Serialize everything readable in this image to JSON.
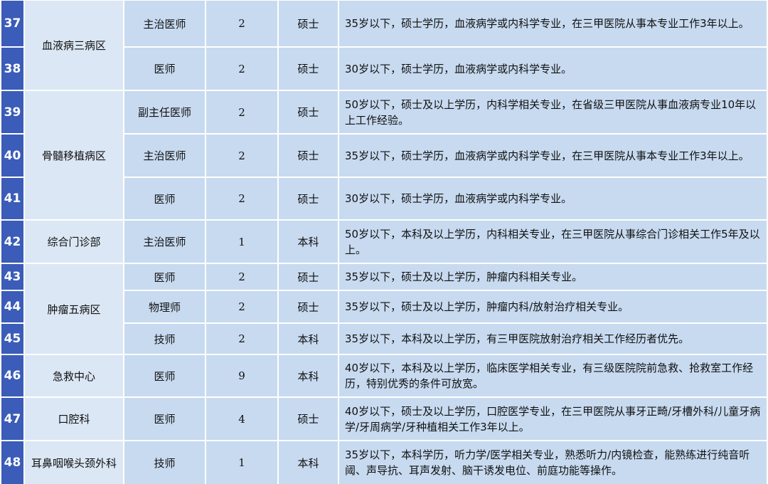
{
  "departments": [
    {
      "name": "血液病三病区",
      "positions": [
        {
          "no": "37",
          "title": "主治医师",
          "count": "2",
          "degree": "硕士",
          "requirements": "35岁以下，硕士学历，血液病学或内科学专业，在三甲医院从事本专业工作3年以上。"
        },
        {
          "no": "38",
          "title": "医师",
          "count": "2",
          "degree": "硕士",
          "requirements": "30岁以下，硕士学历，血液病学或内科学专业。"
        }
      ]
    },
    {
      "name": "骨髓移植病区",
      "positions": [
        {
          "no": "39",
          "title": "副主任医师",
          "count": "2",
          "degree": "硕士",
          "requirements": "50岁以下，硕士及以上学历，内科学相关专业，在省级三甲医院从事血液病专业10年以上工作经验。"
        },
        {
          "no": "40",
          "title": "主治医师",
          "count": "2",
          "degree": "硕士",
          "requirements": "35岁以下，硕士学历，血液病学或内科学专业，在三甲医院从事本专业工作3年以上。"
        },
        {
          "no": "41",
          "title": "医师",
          "count": "2",
          "degree": "硕士",
          "requirements": "30岁以下，硕士学历，血液病学或内科学专业。"
        }
      ]
    },
    {
      "name": "综合门诊部",
      "positions": [
        {
          "no": "42",
          "title": "主治医师",
          "count": "1",
          "degree": "本科",
          "requirements": "50岁以下，本科及以上学历，内科相关专业，在三甲医院从事综合门诊相关工作5年及以上。"
        }
      ]
    },
    {
      "name": "肿瘤五病区",
      "positions": [
        {
          "no": "43",
          "title": "医师",
          "count": "2",
          "degree": "硕士",
          "requirements": "35岁以下，硕士及以上学历，肿瘤内科相关专业。"
        },
        {
          "no": "44",
          "title": "物理师",
          "count": "2",
          "degree": "硕士",
          "requirements": "35岁以下，硕士及以上学历，肿瘤内科/放射治疗相关专业。"
        },
        {
          "no": "45",
          "title": "技师",
          "count": "2",
          "degree": "本科",
          "requirements": "35岁以下，本科及以上学历，有三甲医院放射治疗相关工作经历者优先。"
        }
      ]
    },
    {
      "name": "急救中心",
      "positions": [
        {
          "no": "46",
          "title": "医师",
          "count": "9",
          "degree": "本科",
          "requirements": "40岁以下，本科及以上学历，临床医学相关专业，有三级医院院前急救、抢救室工作经历，特别优秀的条件可放宽。"
        }
      ]
    },
    {
      "name": "口腔科",
      "positions": [
        {
          "no": "47",
          "title": "医师",
          "count": "4",
          "degree": "硕士",
          "requirements": "40岁以下，硕士及以上学历，口腔医学专业，在三甲医院从事牙正畸/牙槽外科/儿童牙病学/牙周病学/牙种植相关工作3年以上。"
        }
      ]
    },
    {
      "name": "耳鼻咽喉头颈外科",
      "positions": [
        {
          "no": "48",
          "title": "技师",
          "count": "1",
          "degree": "本科",
          "requirements": "35岁以下，本科学历，听力学/医学相关专业，熟悉听力/内镜检查，能熟练进行纯音听阈、声导抗、耳声发射、脑干诱发电位、前庭功能等操作。"
        }
      ]
    }
  ]
}
